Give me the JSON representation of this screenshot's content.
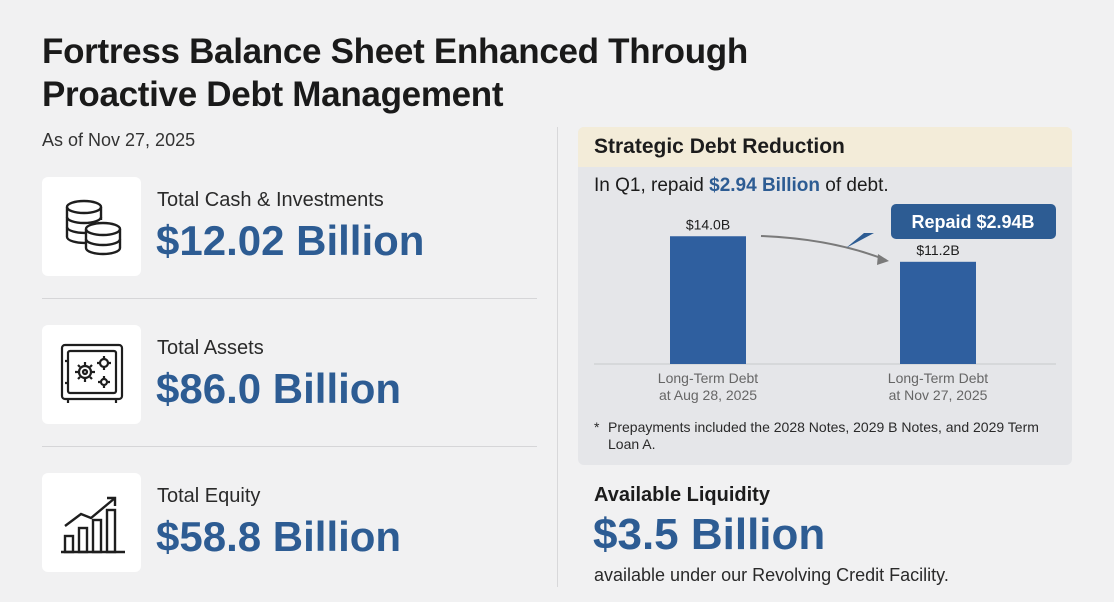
{
  "title": "Fortress Balance Sheet Enhanced Through Proactive Debt Management",
  "as_of": "As of Nov 27, 2025",
  "metrics": [
    {
      "label": "Total Cash & Investments",
      "value": "$12.02 Billion",
      "icon": "coins-stack-icon"
    },
    {
      "label": "Total Assets",
      "value": "$86.0 Billion",
      "icon": "vault-safe-icon"
    },
    {
      "label": "Total Equity",
      "value": "$58.8 Billion",
      "icon": "growth-bar-chart-icon"
    }
  ],
  "debt_panel": {
    "heading": "Strategic Debt Reduction",
    "sub_prefix": "In Q1, repaid ",
    "sub_highlight": "$2.94 Billion",
    "sub_suffix": " of debt.",
    "callout": "Repaid $2.94B",
    "footnote_marker": "*",
    "footnote": "Prepayments included the 2028 Notes, 2029 B Notes, and 2029 Term Loan A."
  },
  "chart_data": {
    "type": "bar",
    "title": "",
    "xlabel": "",
    "ylabel": "",
    "categories": [
      [
        "Long-Term Debt",
        "at Aug 28, 2025"
      ],
      [
        "Long-Term Debt",
        "at Nov 27, 2025"
      ]
    ],
    "values": [
      14.0,
      11.2
    ],
    "data_labels": [
      "$14.0B",
      "$11.2B"
    ],
    "ylim": [
      0,
      16
    ],
    "grid": false,
    "legend": "none"
  },
  "liquidity": {
    "title": "Available Liquidity",
    "value": "$3.5 Billion",
    "description": "available under our Revolving Credit Facility."
  },
  "colors": {
    "accent": "#2d5c93",
    "bar": "#2f5f9f",
    "panel_bg": "#e5e6e9",
    "panel_header": "#f3ecd9",
    "page_bg": "#f1f1f2"
  }
}
